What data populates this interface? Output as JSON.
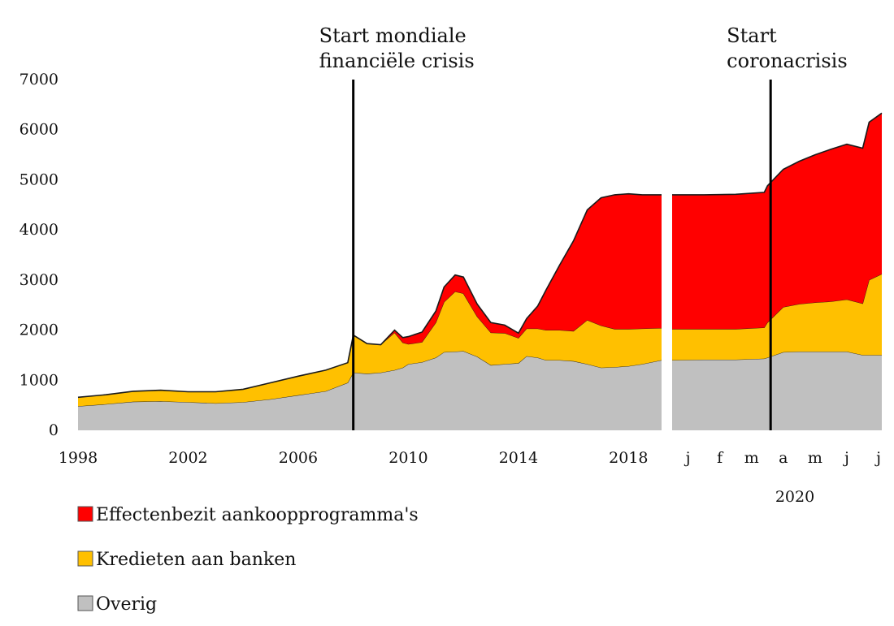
{
  "chart_data": {
    "type": "area",
    "stacked": true,
    "ylim": [
      0,
      7000
    ],
    "y_ticks": [
      0,
      1000,
      2000,
      3000,
      4000,
      5000,
      6000,
      7000
    ],
    "grid": false,
    "legend_placement": "bottom-left",
    "series": [
      {
        "key": "overig",
        "name": "Overig",
        "color": "#c0c0c0"
      },
      {
        "key": "kredieten",
        "name": "Kredieten aan banken",
        "color": "#ffc000"
      },
      {
        "key": "effecten",
        "name": "Effectenbezit aankoopprogramma's",
        "color": "#ff0000"
      }
    ],
    "panels": [
      {
        "id": "long-run",
        "x_range": [
          1998,
          2019.2
        ],
        "x_ticks": [
          {
            "value": 1998,
            "label": "1998"
          },
          {
            "value": 2002,
            "label": "2002"
          },
          {
            "value": 2006,
            "label": "2006"
          },
          {
            "value": 2010,
            "label": "2010"
          },
          {
            "value": 2014,
            "label": "2014"
          },
          {
            "value": 2018,
            "label": "2018"
          }
        ],
        "x": [
          1998,
          1999,
          2000,
          2001,
          2002,
          2003,
          2004,
          2005,
          2006,
          2007,
          2007.8,
          2008.0,
          2008.5,
          2009,
          2009.5,
          2009.8,
          2010,
          2010.5,
          2011,
          2011.3,
          2011.7,
          2012,
          2012.5,
          2013,
          2013.5,
          2014,
          2014.3,
          2014.7,
          2015,
          2015.5,
          2016,
          2016.5,
          2017,
          2017.5,
          2018,
          2018.5,
          2019.2
        ],
        "overig": [
          480,
          520,
          570,
          580,
          560,
          540,
          560,
          620,
          700,
          780,
          950,
          1150,
          1130,
          1150,
          1200,
          1250,
          1320,
          1360,
          1450,
          1560,
          1570,
          1580,
          1470,
          1300,
          1320,
          1340,
          1480,
          1450,
          1400,
          1400,
          1380,
          1320,
          1250,
          1260,
          1280,
          1320,
          1400
        ],
        "kredieten": [
          180,
          190,
          210,
          220,
          210,
          230,
          260,
          330,
          380,
          420,
          400,
          750,
          600,
          560,
          750,
          500,
          400,
          400,
          700,
          1000,
          1200,
          1150,
          800,
          650,
          620,
          500,
          550,
          580,
          600,
          600,
          600,
          880,
          840,
          760,
          740,
          710,
          640
        ],
        "effecten": [
          0,
          0,
          0,
          0,
          0,
          0,
          0,
          0,
          0,
          0,
          0,
          0,
          0,
          0,
          50,
          100,
          150,
          200,
          230,
          300,
          330,
          330,
          250,
          200,
          160,
          100,
          200,
          450,
          800,
          1300,
          1800,
          2200,
          2550,
          2680,
          2700,
          2670,
          2660
        ]
      },
      {
        "id": "2020",
        "x_range": [
          0,
          6.6
        ],
        "x_ticks": [
          {
            "value": 0.5,
            "label": "j"
          },
          {
            "value": 1.5,
            "label": "f"
          },
          {
            "value": 2.5,
            "label": "m"
          },
          {
            "value": 3.5,
            "label": "a"
          },
          {
            "value": 4.5,
            "label": "m"
          },
          {
            "value": 5.5,
            "label": "j"
          },
          {
            "value": 6.5,
            "label": "j"
          }
        ],
        "year_label": "2020",
        "x": [
          0.0,
          1.0,
          2.0,
          2.9,
          3.0,
          3.5,
          4.0,
          4.5,
          5.0,
          5.5,
          6.0,
          6.2,
          6.6
        ],
        "overig": [
          1400,
          1410,
          1410,
          1430,
          1450,
          1560,
          1570,
          1570,
          1570,
          1570,
          1500,
          1500,
          1500
        ],
        "kredieten": [
          620,
          610,
          610,
          620,
          700,
          900,
          950,
          980,
          1000,
          1040,
          1030,
          1500,
          1620
        ],
        "effecten": [
          2680,
          2680,
          2690,
          2700,
          2730,
          2750,
          2850,
          2950,
          3040,
          3100,
          3100,
          3150,
          3210
        ]
      }
    ],
    "annotations": [
      {
        "panel": "long-run",
        "x": 2008.0,
        "lines": [
          "Start mondiale",
          "financiële crisis"
        ]
      },
      {
        "panel": "2020",
        "x": 3.1,
        "lines": [
          "Start",
          "coronacrisis"
        ]
      }
    ]
  }
}
